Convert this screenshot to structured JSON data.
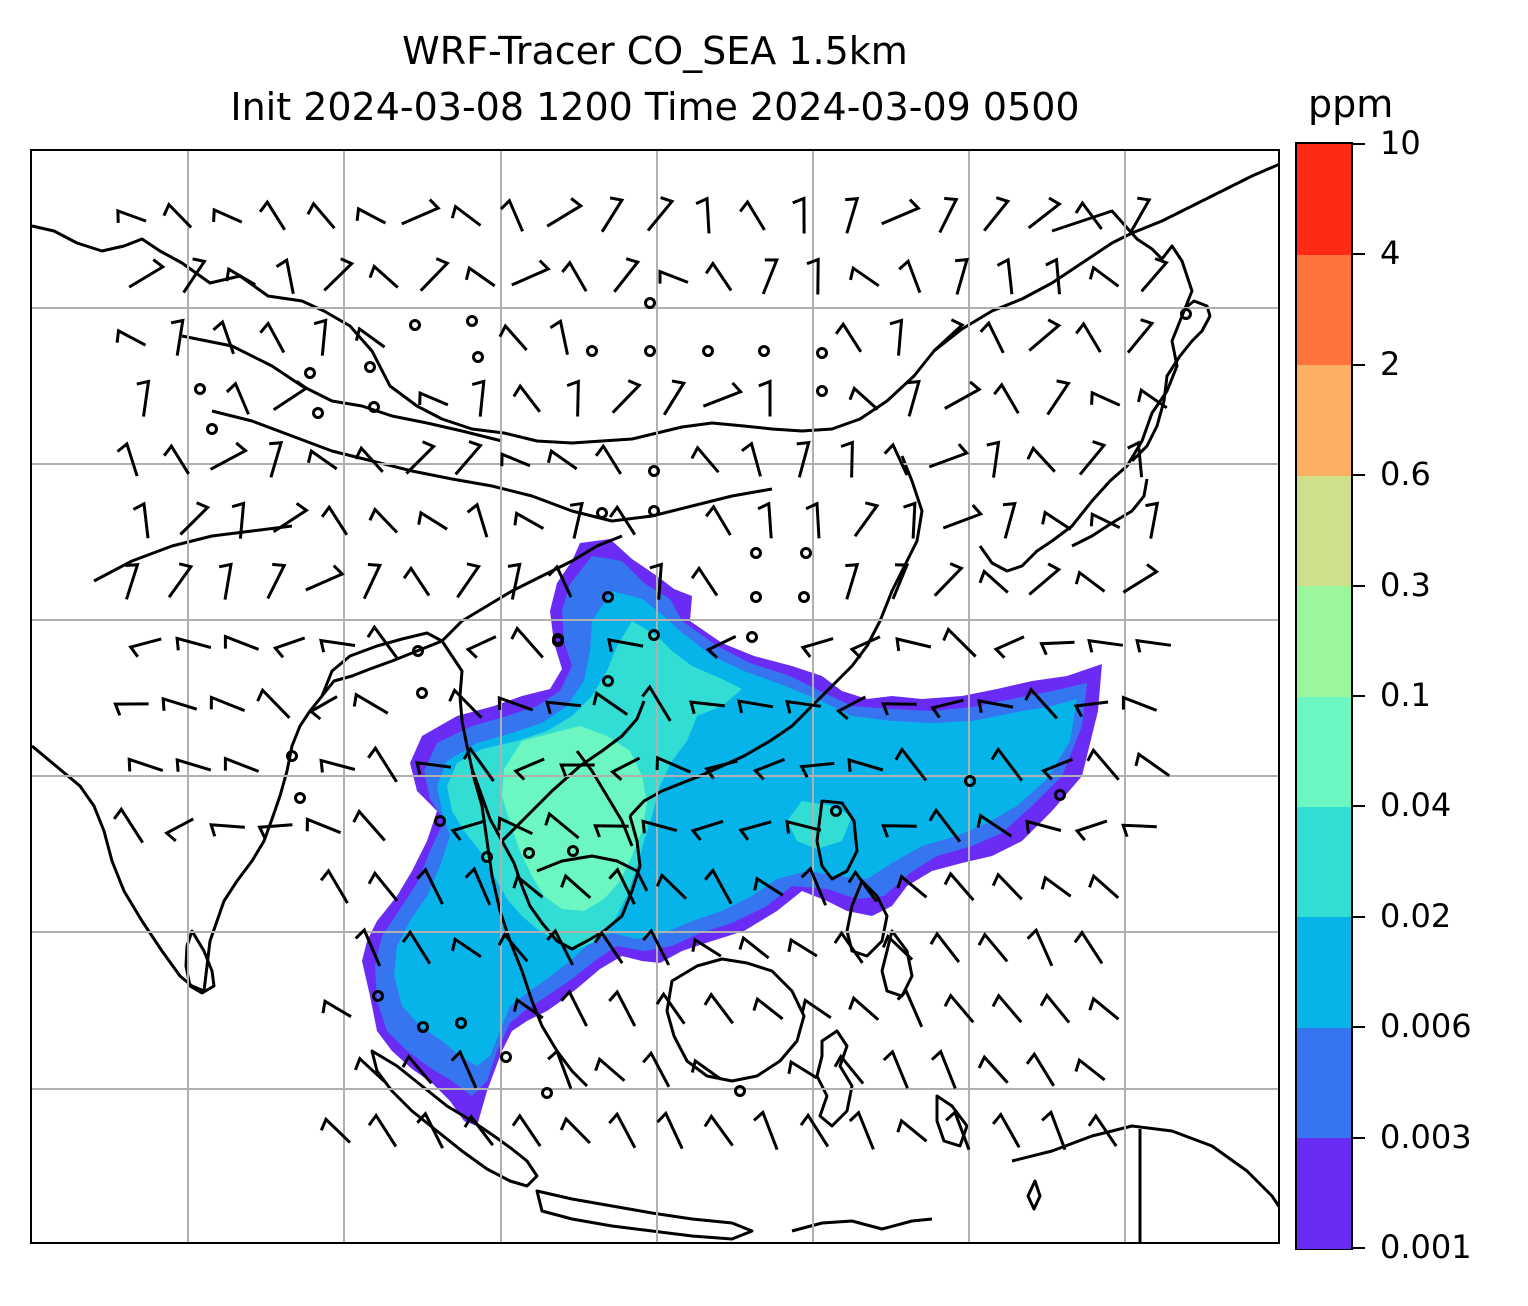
{
  "title": {
    "line1": "WRF-Tracer CO_SEA 1.5km",
    "line2": "Init 2024-03-08 1200 Time 2024-03-09 0500"
  },
  "colorbar": {
    "units": "ppm",
    "levels": [
      "0.001",
      "0.003",
      "0.006",
      "0.02",
      "0.04",
      "0.1",
      "0.3",
      "0.6",
      "2",
      "4",
      "10"
    ],
    "colors": [
      "#6a2cf5",
      "#3575f0",
      "#06b4ea",
      "#32ddd4",
      "#6cf7c2",
      "#9bf79c",
      "#cfe08a",
      "#fdb062",
      "#fe7339",
      "#fe2a15"
    ]
  },
  "map": {
    "gridlines": true,
    "features": [
      "coastline",
      "country-borders",
      "co-tracer-plume",
      "wind-barbs",
      "calm-circles"
    ],
    "plume_colors": {
      "level_0_001": "#6a2cf5",
      "level_0_003": "#3575f0",
      "level_0_006": "#06b4ea",
      "level_0_02": "#32ddd4",
      "level_0_04": "#6cf7c2"
    }
  }
}
